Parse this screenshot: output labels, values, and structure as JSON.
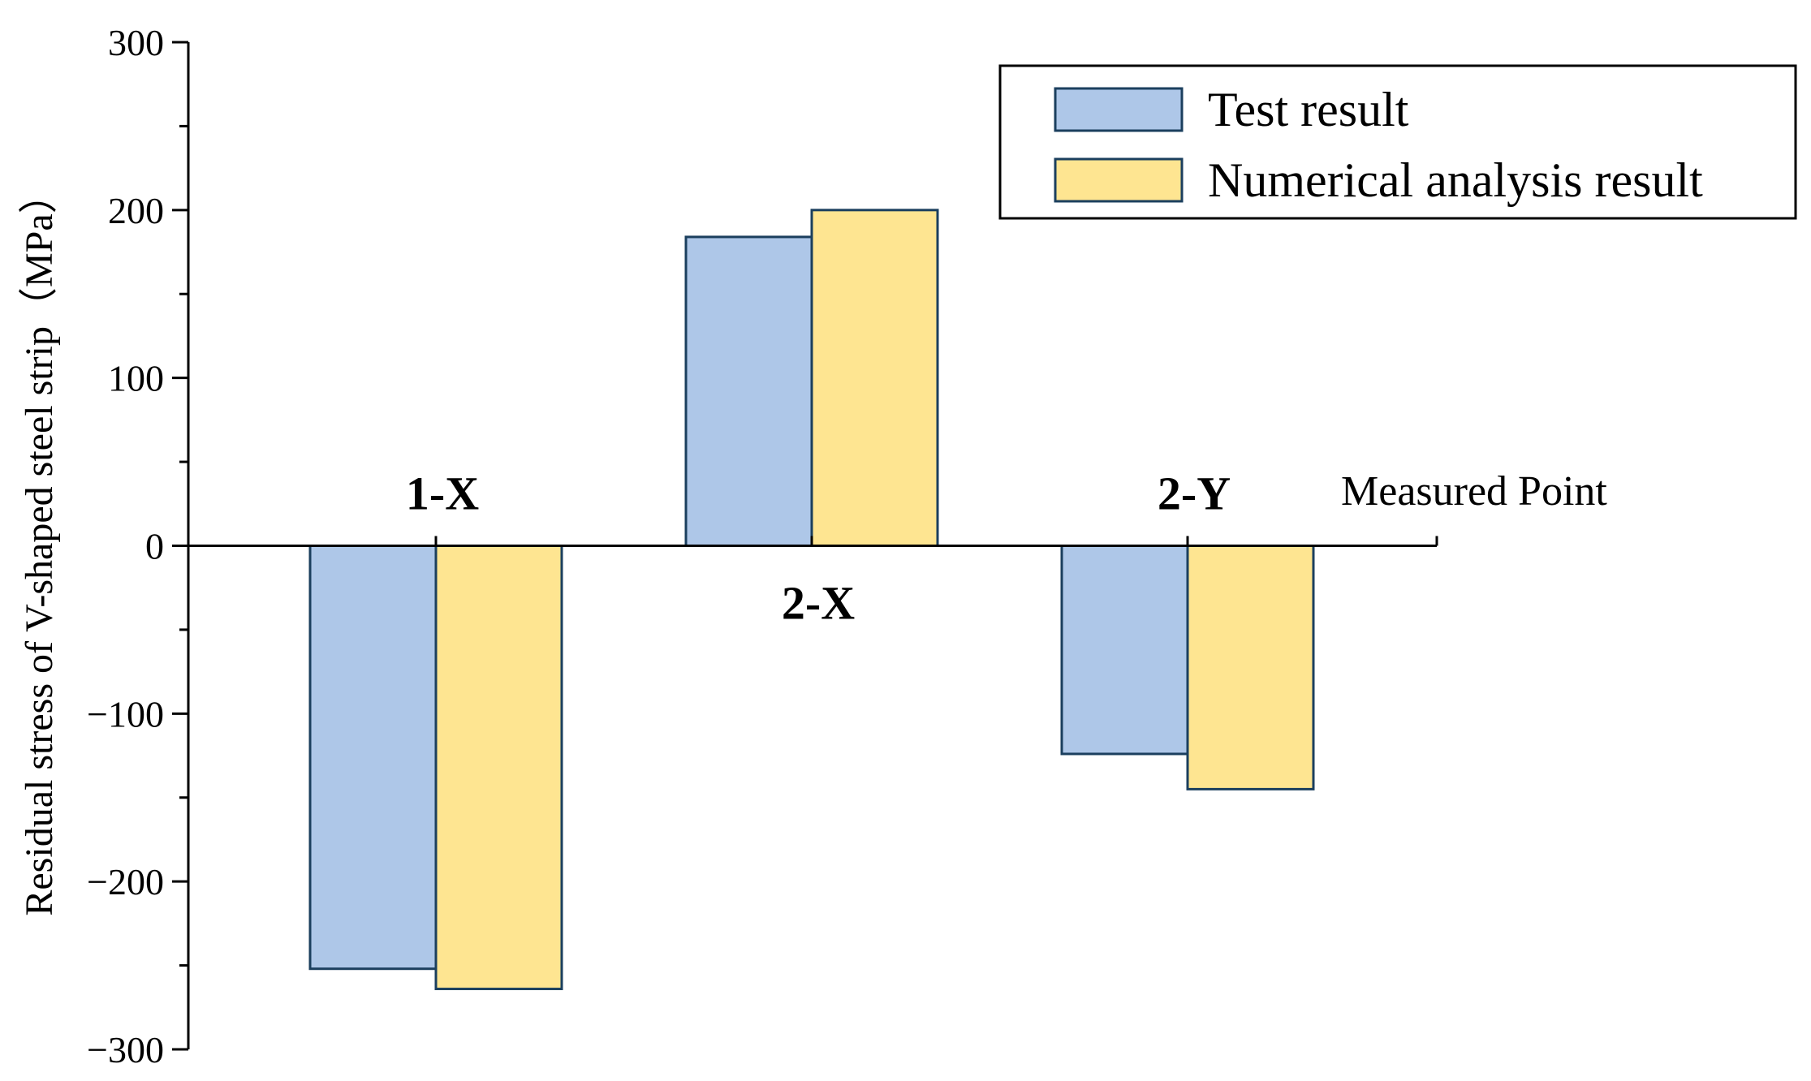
{
  "chart_data": {
    "type": "bar",
    "categories": [
      "1-X",
      "2-X",
      "2-Y"
    ],
    "series": [
      {
        "name": "Test result",
        "values": [
          -252,
          184,
          -124
        ],
        "color": "#aec7e8"
      },
      {
        "name": "Numerical analysis result",
        "values": [
          -264,
          200,
          -145
        ],
        "color": "#fee591"
      }
    ],
    "xlabel": "Measured Point",
    "ylabel": "Residual  stress of V-shaped steel strip（MPa）",
    "ylim": [
      -300,
      300
    ],
    "yticks": [
      300,
      200,
      100,
      0,
      -100,
      -200,
      -300
    ],
    "ytick_labels": [
      "300",
      "200",
      "100",
      "0",
      "−100",
      "−200",
      "−300"
    ],
    "grid": false,
    "legend_position": "top-right",
    "axis_color": "#000000",
    "bar_edge_color": "#1b3f5e"
  }
}
